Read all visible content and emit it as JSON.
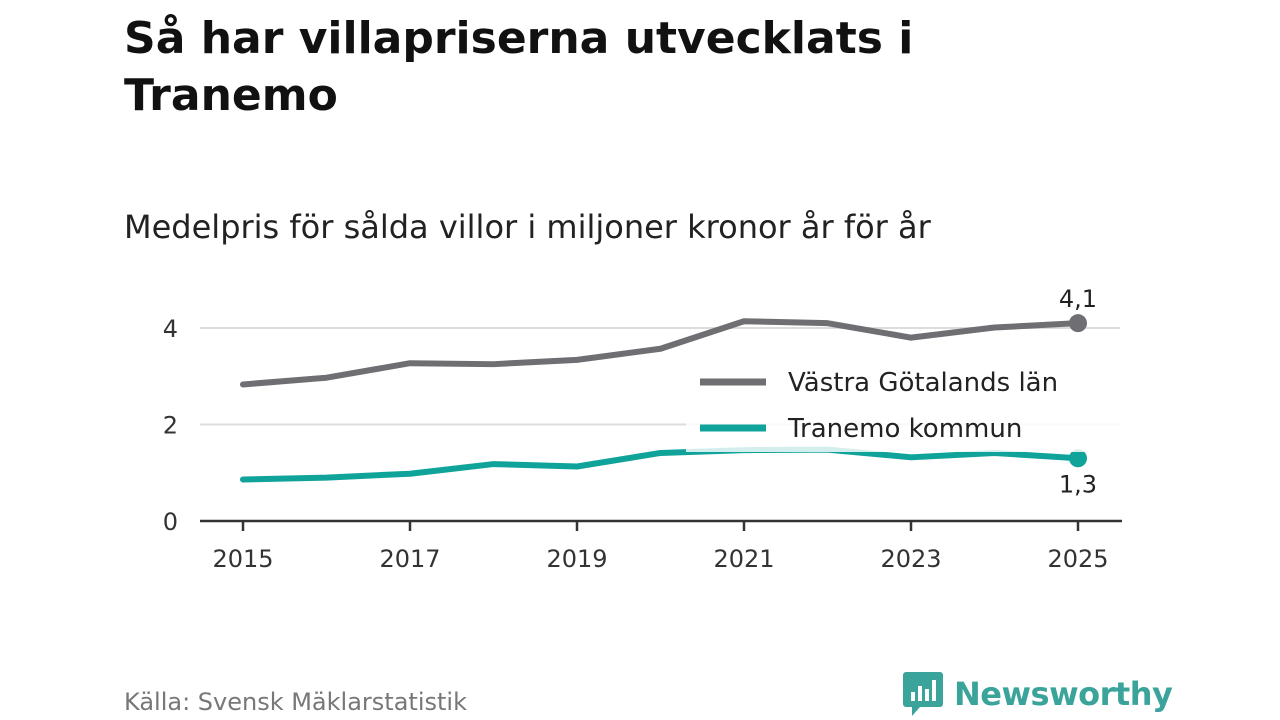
{
  "chart_data": {
    "type": "line",
    "title": "Så har villapriserna utvecklats i Tranemo",
    "subtitle": "Medelpris för sålda villor i miljoner kronor år för år",
    "x": [
      2015,
      2016,
      2017,
      2018,
      2019,
      2020,
      2021,
      2022,
      2023,
      2024,
      2025
    ],
    "x_ticks": [
      "2015",
      "2017",
      "2019",
      "2021",
      "2023",
      "2025"
    ],
    "y_ticks": [
      "0",
      "2",
      "4"
    ],
    "ylim": [
      0,
      4.5
    ],
    "series": [
      {
        "name": "Västra Götalands län",
        "color": "#6e6e73",
        "values": [
          2.83,
          2.97,
          3.27,
          3.25,
          3.34,
          3.57,
          4.14,
          4.1,
          3.8,
          4.01,
          4.1
        ],
        "end_label": "4,1"
      },
      {
        "name": "Tranemo kommun",
        "color": "#0fa39a",
        "values": [
          0.86,
          0.9,
          0.98,
          1.18,
          1.13,
          1.41,
          1.47,
          1.48,
          1.32,
          1.41,
          1.3
        ],
        "end_label": "1,3"
      }
    ]
  },
  "footer": {
    "source": "Källa: Svensk Mäklarstatistik",
    "brand": "Newsworthy"
  }
}
